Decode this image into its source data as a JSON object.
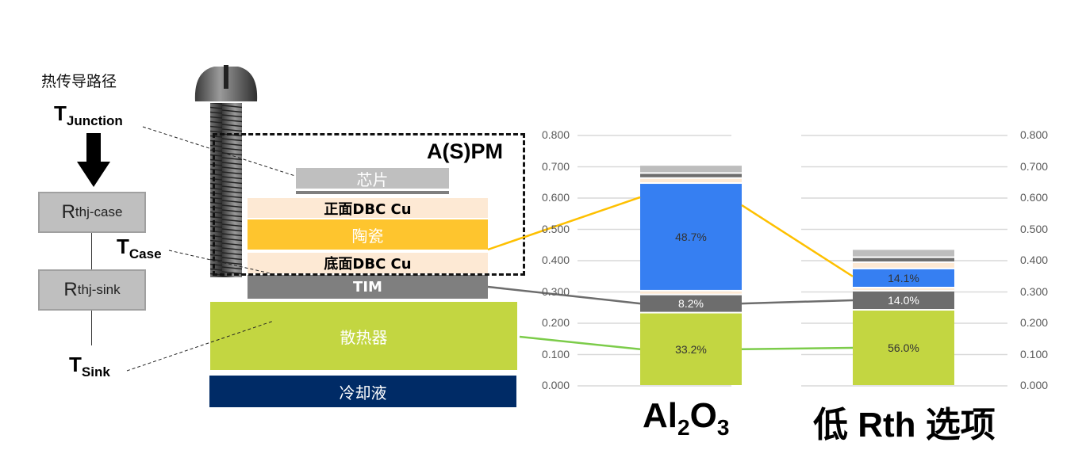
{
  "diagram": {
    "title": "热传导路径",
    "t_junction": {
      "main": "T",
      "sub": "Junction"
    },
    "t_case": {
      "main": "T",
      "sub": "Case"
    },
    "t_sink": {
      "main": "T",
      "sub": "Sink"
    },
    "r_case": {
      "main": "R",
      "sub": "thj-case"
    },
    "r_sink": {
      "main": "R",
      "sub": "thj-sink"
    },
    "module_label": "A(S)PM",
    "layers": {
      "chip": "芯片",
      "top_dbc": "正面DBC Cu",
      "ceramic": "陶瓷",
      "bottom_dbc": "底面DBC Cu",
      "tim": "TIM",
      "heatsink": "散热器",
      "coolant": "冷却液"
    },
    "colors": {
      "chip": "#bfbfbf",
      "dbc": "#fde9d4",
      "ceramic": "#fec52e",
      "tim": "#7f7f7f",
      "heatsink": "#c3d641",
      "coolant": "#002b66"
    }
  },
  "chart_data": {
    "type": "bar",
    "stacked": true,
    "categories": [
      "Al2O3",
      "低 Rth 选项"
    ],
    "category_labels": {
      "al_main": "Al",
      "al_sub1": "2",
      "al_o": "O",
      "al_sub2": "3",
      "low": "低 Rth 选项"
    },
    "ylim": [
      0,
      0.8
    ],
    "yticks": [
      "0.000",
      "0.100",
      "0.200",
      "0.300",
      "0.400",
      "0.500",
      "0.600",
      "0.700",
      "0.800"
    ],
    "grid": true,
    "series": [
      {
        "color": "#c3d641",
        "values": [
          0.234,
          0.243
        ],
        "labels": [
          "33.2%",
          "56.0%"
        ]
      },
      {
        "color": "#6d6d6d",
        "values": [
          0.058,
          0.061
        ],
        "labels": [
          "8.2%",
          "14.0%"
        ]
      },
      {
        "color": "#fde9d4",
        "values": [
          0.012,
          0.01
        ]
      },
      {
        "color": "#367ff2",
        "values": [
          0.344,
          0.061
        ],
        "labels": [
          "48.7%",
          "14.1%"
        ]
      },
      {
        "color": "#fde9d4",
        "values": [
          0.016,
          0.02
        ]
      },
      {
        "color": "#6d6d6d",
        "values": [
          0.016,
          0.016
        ]
      },
      {
        "color": "#bdbdbd",
        "values": [
          0.026,
          0.026
        ]
      }
    ]
  }
}
